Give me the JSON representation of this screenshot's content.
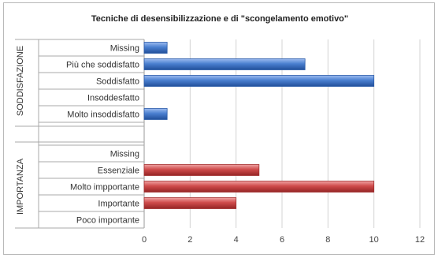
{
  "chart_data": {
    "type": "bar",
    "orientation": "horizontal",
    "title": "Tecniche di desensibilizzazione e di \"scongelamento emotivo\"",
    "xlim": [
      0,
      12
    ],
    "x_ticks": [
      0,
      2,
      4,
      6,
      8,
      10,
      12
    ],
    "grid": true,
    "groups": [
      {
        "name": "SODDISFAZIONE",
        "color": "#4a7fd0",
        "categories": [
          "Missing",
          "Più che soddisfatto",
          "Soddisfatto",
          "Insoddesfatto",
          "Molto insoddisfatto"
        ],
        "values": [
          1,
          7,
          10,
          0,
          1
        ]
      },
      {
        "name": "IMPORTANZA",
        "color": "#cf4b4b",
        "categories": [
          "Missing",
          "Essenziale",
          "Molto impportante",
          "Importante",
          "Poco importante"
        ],
        "values": [
          0,
          5,
          10,
          4,
          0
        ]
      }
    ]
  }
}
